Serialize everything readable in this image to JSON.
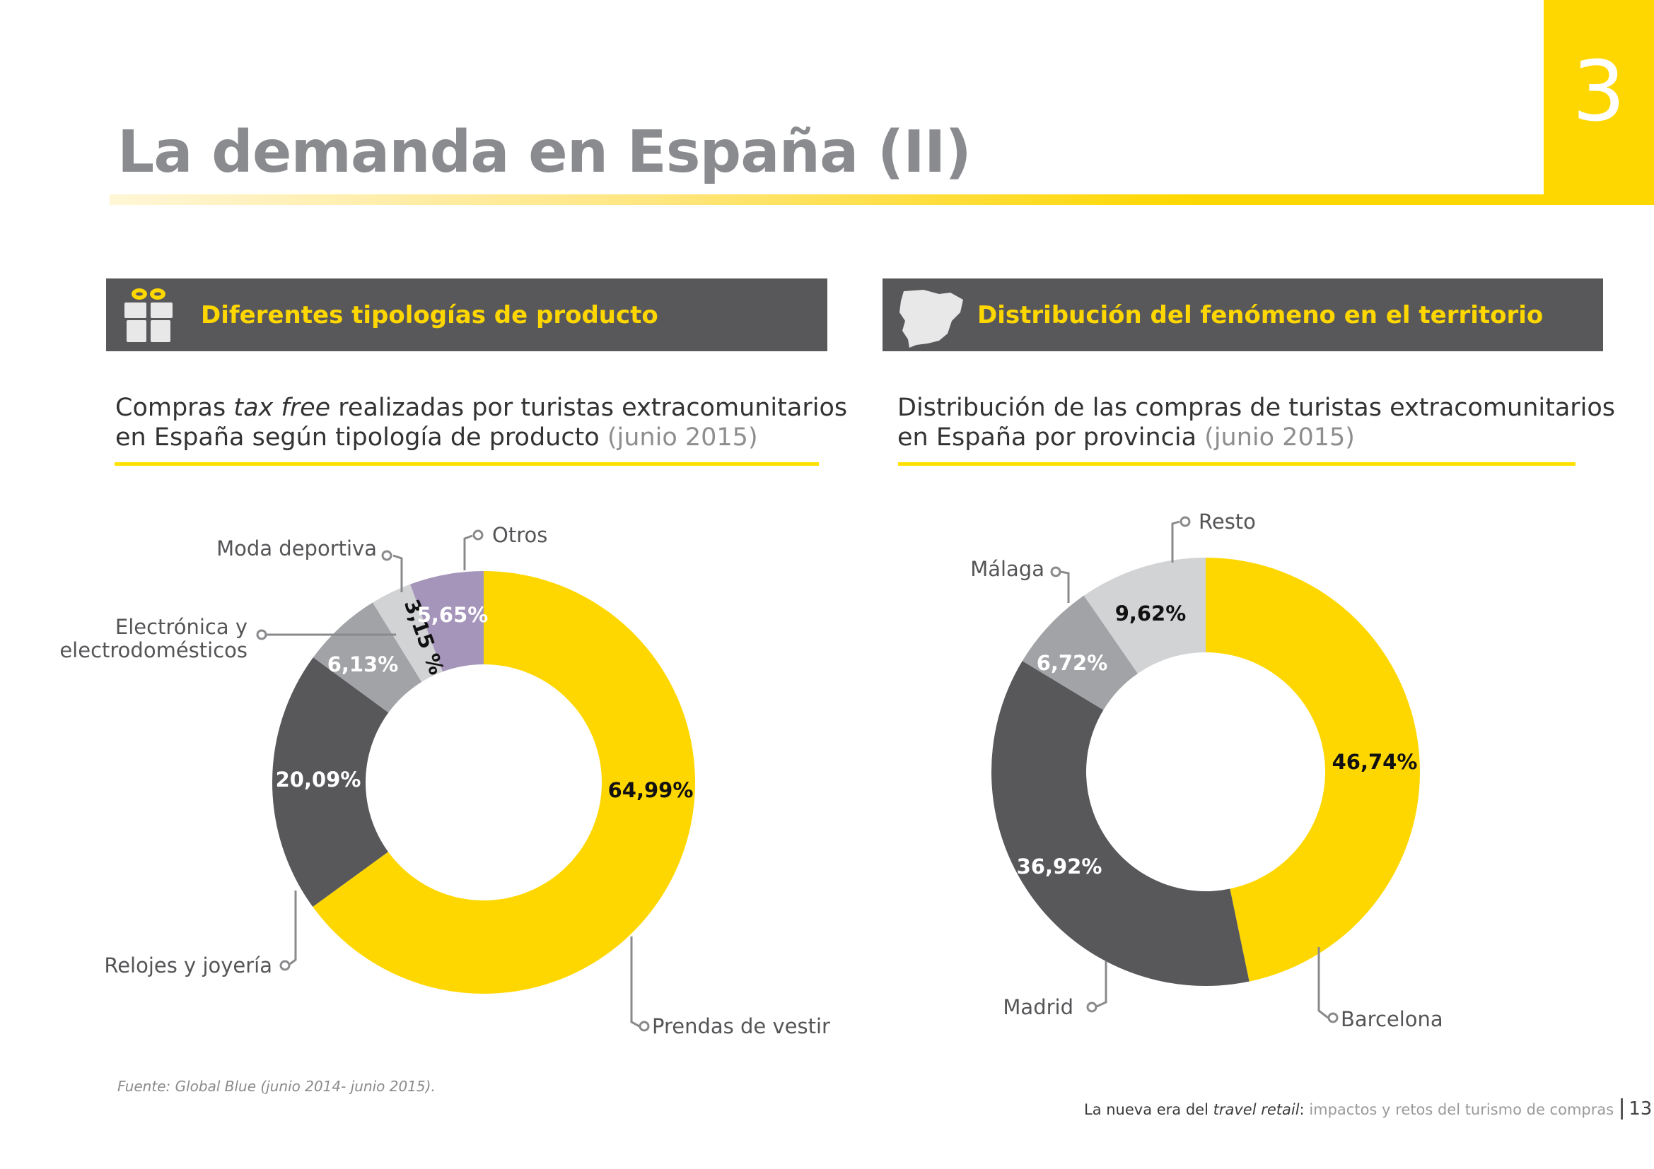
{
  "page": {
    "section_number": "3",
    "title": "La demanda en España (II)",
    "colors": {
      "accent": "#FFD700",
      "header_bar": "#58585b",
      "title_gray": "#8a8b8e"
    }
  },
  "left_section": {
    "icon": "gift-icon",
    "heading": "Diferentes tipologías de producto",
    "subtitle": {
      "line1_pre": "Compras ",
      "line1_italic": "tax free",
      "line1_post": " realizadas por turistas extracomunitarios",
      "line2": "en España según tipología de producto ",
      "date": "(junio 2015)"
    }
  },
  "right_section": {
    "icon": "spain-map-icon",
    "heading": "Distribución del fenómeno en el territorio",
    "subtitle": {
      "line1": "Distribución de las compras de turistas extracomunitarios",
      "line2": "en España por provincia ",
      "date": "(junio 2015)"
    }
  },
  "chart_data": [
    {
      "type": "pie",
      "variant": "donut",
      "title": "Compras tax free realizadas por turistas extracomunitarios en España según tipología de producto (junio 2015)",
      "unit": "%",
      "start": "top",
      "direction": "clockwise",
      "slices": [
        {
          "label": "Prendas de vestir",
          "value": 64.99,
          "display": "64,99%",
          "color": "#FFD700",
          "text_color": "#111111"
        },
        {
          "label": "Relojes y joyería",
          "value": 20.09,
          "display": "20,09%",
          "color": "#58585b",
          "text_color": "#ffffff"
        },
        {
          "label": "Electrónica y electrodomésticos",
          "label_lines": [
            "Electrónica y",
            "electrodomésticos"
          ],
          "value": 6.13,
          "display": "6,13%",
          "color": "#a2a3a6",
          "text_color": "#ffffff"
        },
        {
          "label": "Moda deportiva",
          "value": 3.15,
          "display": "3,15 %",
          "color": "#d2d3d5",
          "text_color": "#111111"
        },
        {
          "label": "Otros",
          "value": 5.65,
          "display": "5,65%",
          "color": "#a595bb",
          "text_color": "#ffffff"
        }
      ]
    },
    {
      "type": "pie",
      "variant": "donut",
      "title": "Distribución de las compras de turistas extracomunitarios en España por provincia (junio 2015)",
      "unit": "%",
      "start": "top",
      "direction": "clockwise",
      "slices": [
        {
          "label": "Barcelona",
          "value": 46.74,
          "display": "46,74%",
          "color": "#FFD700",
          "text_color": "#111111"
        },
        {
          "label": "Madrid",
          "value": 36.92,
          "display": "36,92%",
          "color": "#58585b",
          "text_color": "#ffffff"
        },
        {
          "label": "Málaga",
          "value": 6.72,
          "display": "6,72%",
          "color": "#a2a3a6",
          "text_color": "#ffffff"
        },
        {
          "label": "Resto",
          "value": 9.62,
          "display": "9,62%",
          "color": "#d2d3d5",
          "text_color": "#111111"
        }
      ]
    }
  ],
  "source": "Fuente: Global Blue (junio 2014- junio 2015).",
  "footer": {
    "pre": "La nueva era del ",
    "italic": "travel retail",
    "colon": ": ",
    "rest": "impactos y retos del turismo de compras",
    "page_number": "13"
  }
}
